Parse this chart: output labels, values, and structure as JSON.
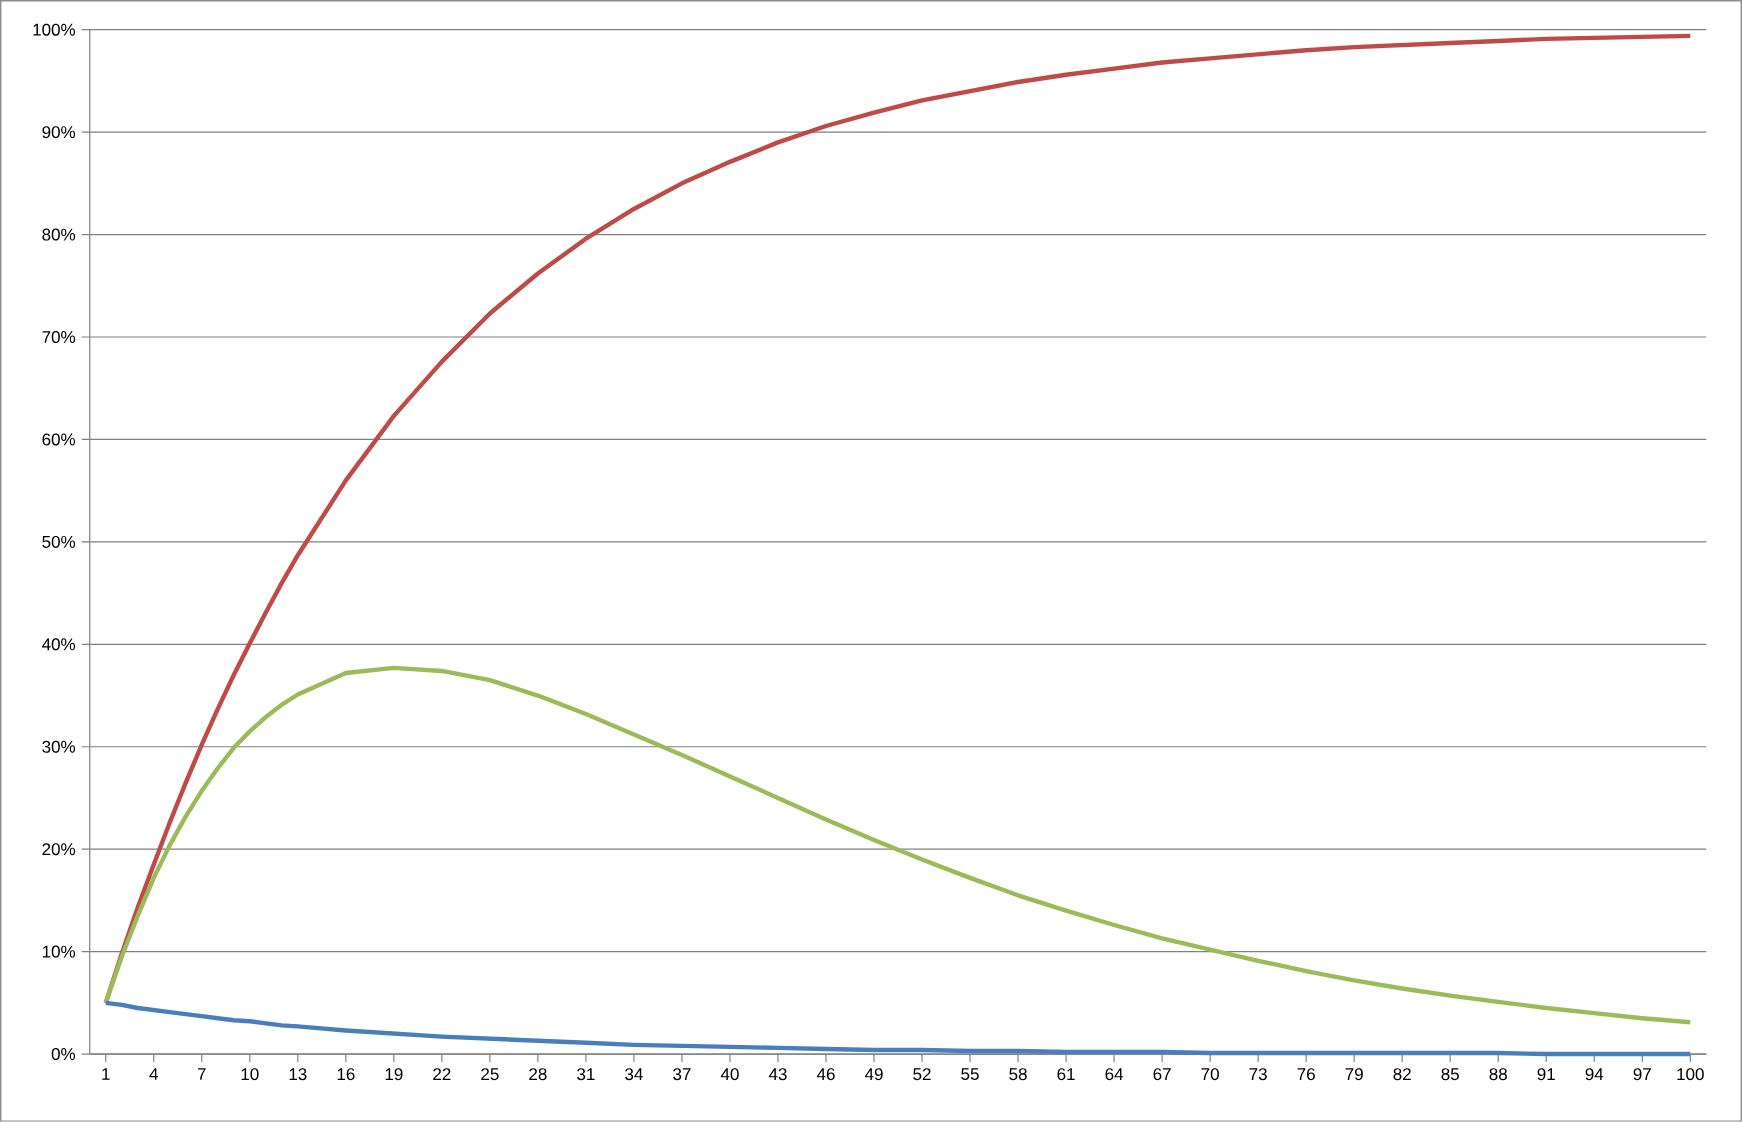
{
  "chart_data": {
    "type": "line",
    "x": [
      1,
      2,
      3,
      4,
      5,
      6,
      7,
      8,
      9,
      10,
      11,
      12,
      13,
      16,
      19,
      22,
      25,
      28,
      31,
      34,
      37,
      40,
      43,
      46,
      49,
      52,
      55,
      58,
      61,
      64,
      67,
      70,
      73,
      76,
      79,
      82,
      85,
      88,
      91,
      94,
      97,
      100
    ],
    "series": [
      {
        "color": "#be4b48",
        "values": [
          5.0,
          9.8,
          14.3,
          18.5,
          22.6,
          26.5,
          30.2,
          33.7,
          37.0,
          40.1,
          43.1,
          46.0,
          48.7,
          56.0,
          62.3,
          67.6,
          72.3,
          76.2,
          79.6,
          82.5,
          85.0,
          87.1,
          89.0,
          90.6,
          91.9,
          93.1,
          94.0,
          94.9,
          95.6,
          96.2,
          96.8,
          97.2,
          97.6,
          98.0,
          98.3,
          98.5,
          98.7,
          98.9,
          99.1,
          99.2,
          99.3,
          99.4
        ]
      },
      {
        "color": "#9bbb59",
        "values": [
          5.0,
          9.5,
          13.5,
          17.2,
          20.4,
          23.2,
          25.7,
          27.9,
          29.9,
          31.5,
          32.9,
          34.1,
          35.1,
          37.2,
          37.7,
          37.4,
          36.5,
          35.0,
          33.2,
          31.2,
          29.2,
          27.1,
          25.0,
          22.9,
          20.9,
          19.0,
          17.2,
          15.5,
          14.0,
          12.6,
          11.3,
          10.2,
          9.1,
          8.1,
          7.2,
          6.4,
          5.7,
          5.1,
          4.5,
          4.0,
          3.5,
          3.1
        ]
      },
      {
        "color": "#4a7ebb",
        "values": [
          5.0,
          4.8,
          4.5,
          4.3,
          4.1,
          3.9,
          3.7,
          3.5,
          3.3,
          3.2,
          3.0,
          2.8,
          2.7,
          2.3,
          2.0,
          1.7,
          1.5,
          1.3,
          1.1,
          0.9,
          0.8,
          0.7,
          0.6,
          0.5,
          0.4,
          0.4,
          0.3,
          0.3,
          0.2,
          0.2,
          0.2,
          0.1,
          0.1,
          0.1,
          0.1,
          0.1,
          0.1,
          0.1,
          0,
          0,
          0,
          0
        ]
      }
    ],
    "xlim": [
      0,
      101
    ],
    "ylim": [
      0,
      100
    ],
    "xticks": [
      1,
      4,
      7,
      10,
      13,
      16,
      19,
      22,
      25,
      28,
      31,
      34,
      37,
      40,
      43,
      46,
      49,
      52,
      55,
      58,
      61,
      64,
      67,
      70,
      73,
      76,
      79,
      82,
      85,
      88,
      91,
      94,
      97,
      100
    ],
    "yticks": [
      {
        "value": 0,
        "label": "0%"
      },
      {
        "value": 10,
        "label": "10%"
      },
      {
        "value": 20,
        "label": "20%"
      },
      {
        "value": 30,
        "label": "30%"
      },
      {
        "value": 40,
        "label": "40%"
      },
      {
        "value": 50,
        "label": "50%"
      },
      {
        "value": 60,
        "label": "60%"
      },
      {
        "value": 70,
        "label": "70%"
      },
      {
        "value": 80,
        "label": "80%"
      },
      {
        "value": 90,
        "label": "90%"
      },
      {
        "value": 100,
        "label": "100%"
      }
    ],
    "grid": "y"
  }
}
